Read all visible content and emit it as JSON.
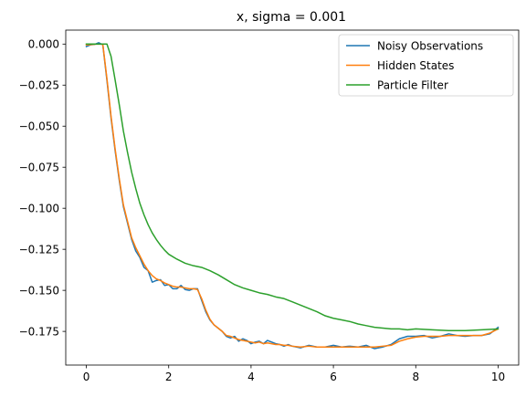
{
  "chart_data": {
    "type": "line",
    "title": "x, sigma = 0.001",
    "xlabel": "",
    "ylabel": "",
    "xlim": [
      -0.5,
      10.5
    ],
    "ylim": [
      -0.1955,
      0.0085
    ],
    "xticks": [
      0,
      2,
      4,
      6,
      8,
      10
    ],
    "xtick_labels": [
      "0",
      "2",
      "4",
      "6",
      "8",
      "10"
    ],
    "yticks": [
      0.0,
      -0.025,
      -0.05,
      -0.075,
      -0.1,
      -0.125,
      -0.15,
      -0.175
    ],
    "ytick_labels": [
      "0.000",
      "−0.025",
      "−0.050",
      "−0.075",
      "−0.100",
      "−0.125",
      "−0.150",
      "−0.175"
    ],
    "grid": false,
    "legend_position": "top-right",
    "series": [
      {
        "name": "Noisy Observations",
        "color": "#1f77b4",
        "x": [
          0,
          0.1,
          0.2,
          0.3,
          0.4,
          0.5,
          0.6,
          0.7,
          0.8,
          0.9,
          1.0,
          1.1,
          1.2,
          1.3,
          1.4,
          1.5,
          1.6,
          1.7,
          1.8,
          1.9,
          2.0,
          2.1,
          2.2,
          2.3,
          2.4,
          2.5,
          2.6,
          2.7,
          2.8,
          2.9,
          3.0,
          3.1,
          3.2,
          3.3,
          3.4,
          3.5,
          3.6,
          3.7,
          3.8,
          3.9,
          4.0,
          4.1,
          4.2,
          4.3,
          4.4,
          4.5,
          4.6,
          4.7,
          4.8,
          4.9,
          5.0,
          5.2,
          5.4,
          5.6,
          5.8,
          6.0,
          6.2,
          6.4,
          6.6,
          6.8,
          7.0,
          7.2,
          7.4,
          7.6,
          7.8,
          8.0,
          8.2,
          8.4,
          8.6,
          8.8,
          9.0,
          9.2,
          9.4,
          9.6,
          9.8,
          10.0
        ],
        "y": [
          -0.0015,
          -0.0005,
          -0.0002,
          0.0008,
          -0.0004,
          -0.022,
          -0.045,
          -0.065,
          -0.083,
          -0.099,
          -0.109,
          -0.119,
          -0.126,
          -0.13,
          -0.136,
          -0.138,
          -0.145,
          -0.144,
          -0.1435,
          -0.147,
          -0.1465,
          -0.149,
          -0.149,
          -0.147,
          -0.1495,
          -0.15,
          -0.149,
          -0.149,
          -0.156,
          -0.163,
          -0.168,
          -0.171,
          -0.173,
          -0.175,
          -0.178,
          -0.179,
          -0.178,
          -0.181,
          -0.1795,
          -0.1805,
          -0.1825,
          -0.1815,
          -0.181,
          -0.1825,
          -0.1805,
          -0.1815,
          -0.1825,
          -0.183,
          -0.184,
          -0.183,
          -0.184,
          -0.185,
          -0.1835,
          -0.1845,
          -0.1845,
          -0.1835,
          -0.1845,
          -0.184,
          -0.1845,
          -0.1835,
          -0.1855,
          -0.1845,
          -0.183,
          -0.1795,
          -0.178,
          -0.178,
          -0.1775,
          -0.179,
          -0.178,
          -0.1765,
          -0.1775,
          -0.178,
          -0.1775,
          -0.1775,
          -0.1765,
          -0.1725
        ]
      },
      {
        "name": "Hidden States",
        "color": "#ff7f0e",
        "x": [
          0,
          0.1,
          0.2,
          0.3,
          0.4,
          0.5,
          0.6,
          0.7,
          0.8,
          0.9,
          1.0,
          1.1,
          1.2,
          1.3,
          1.4,
          1.5,
          1.6,
          1.7,
          1.8,
          1.9,
          2.0,
          2.1,
          2.2,
          2.3,
          2.4,
          2.5,
          2.6,
          2.7,
          2.8,
          2.9,
          3.0,
          3.1,
          3.2,
          3.3,
          3.4,
          3.5,
          3.6,
          3.7,
          3.8,
          3.9,
          4.0,
          4.1,
          4.2,
          4.3,
          4.4,
          4.5,
          4.6,
          4.7,
          4.8,
          4.9,
          5.0,
          5.2,
          5.4,
          5.6,
          5.8,
          6.0,
          6.2,
          6.4,
          6.6,
          6.8,
          7.0,
          7.2,
          7.4,
          7.6,
          7.8,
          8.0,
          8.2,
          8.4,
          8.6,
          8.8,
          9.0,
          9.2,
          9.4,
          9.6,
          9.8,
          10.0
        ],
        "y": [
          -0.0005,
          -0.0003,
          -0.0001,
          0.0,
          -0.0002,
          -0.021,
          -0.044,
          -0.064,
          -0.082,
          -0.098,
          -0.108,
          -0.118,
          -0.124,
          -0.129,
          -0.134,
          -0.138,
          -0.141,
          -0.143,
          -0.144,
          -0.1455,
          -0.1465,
          -0.1475,
          -0.148,
          -0.148,
          -0.1485,
          -0.149,
          -0.149,
          -0.1495,
          -0.155,
          -0.162,
          -0.1675,
          -0.171,
          -0.173,
          -0.175,
          -0.1775,
          -0.178,
          -0.179,
          -0.18,
          -0.1805,
          -0.181,
          -0.1815,
          -0.182,
          -0.1815,
          -0.1825,
          -0.182,
          -0.1825,
          -0.183,
          -0.183,
          -0.1835,
          -0.1835,
          -0.184,
          -0.1845,
          -0.184,
          -0.1845,
          -0.1845,
          -0.1845,
          -0.1845,
          -0.1845,
          -0.1845,
          -0.1845,
          -0.1845,
          -0.184,
          -0.1835,
          -0.181,
          -0.1795,
          -0.1785,
          -0.178,
          -0.178,
          -0.178,
          -0.1775,
          -0.1775,
          -0.1775,
          -0.1775,
          -0.1775,
          -0.176,
          -0.1735
        ]
      },
      {
        "name": "Particle Filter",
        "color": "#2ca02c",
        "x": [
          0,
          0.1,
          0.2,
          0.3,
          0.4,
          0.5,
          0.6,
          0.7,
          0.8,
          0.9,
          1.0,
          1.1,
          1.2,
          1.3,
          1.4,
          1.5,
          1.6,
          1.7,
          1.8,
          1.9,
          2.0,
          2.2,
          2.4,
          2.6,
          2.8,
          3.0,
          3.2,
          3.4,
          3.6,
          3.8,
          4.0,
          4.2,
          4.4,
          4.6,
          4.8,
          5.0,
          5.2,
          5.4,
          5.6,
          5.8,
          6.0,
          6.2,
          6.4,
          6.6,
          6.8,
          7.0,
          7.2,
          7.4,
          7.6,
          7.8,
          8.0,
          8.4,
          8.8,
          9.2,
          9.6,
          10.0
        ],
        "y": [
          0.0,
          0.0,
          0.0,
          0.0,
          0.0,
          0.0,
          -0.0075,
          -0.022,
          -0.037,
          -0.053,
          -0.066,
          -0.078,
          -0.088,
          -0.097,
          -0.104,
          -0.11,
          -0.115,
          -0.119,
          -0.1225,
          -0.1255,
          -0.128,
          -0.131,
          -0.1335,
          -0.135,
          -0.136,
          -0.138,
          -0.1405,
          -0.1435,
          -0.1465,
          -0.1485,
          -0.15,
          -0.1515,
          -0.1525,
          -0.154,
          -0.155,
          -0.157,
          -0.159,
          -0.161,
          -0.163,
          -0.1655,
          -0.167,
          -0.168,
          -0.169,
          -0.1705,
          -0.1715,
          -0.1725,
          -0.173,
          -0.1735,
          -0.1735,
          -0.174,
          -0.1735,
          -0.174,
          -0.1745,
          -0.1745,
          -0.174,
          -0.1735
        ]
      }
    ]
  }
}
